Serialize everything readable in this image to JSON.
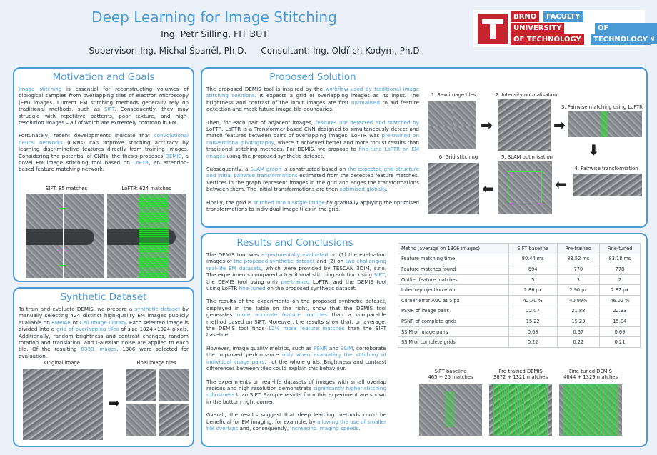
{
  "header": {
    "title": "Deep Learning for Image Stitching",
    "author": "Ing. Petr Šilling, FIT BUT",
    "supervisor": "Supervisor: Ing. Michal Španěl, Ph.D.",
    "consultant": "Consultant: Ing. Oldřich Kodym, Ph.D."
  },
  "logo": {
    "l1": "BRNO",
    "l1b": "FACULTY",
    "l2": "UNIVERSITY",
    "l2b": "OF INFORMATION",
    "l3": "OF TECHNOLOGY",
    "l3b": "TECHNOLOGY",
    "red": "#c7242d",
    "blue": "#4a9ad6"
  },
  "motivation": {
    "title": "Motivation and Goals",
    "p1": [
      {
        "t": "Image stitching",
        "h": true
      },
      {
        "t": " is essential for reconstructing volumes of biological samples from overlapping tiles of electron microscopy (EM) images. Current EM stitching methods generally rely on traditional methods, such as "
      },
      {
        "t": "SIFT",
        "h": true
      },
      {
        "t": ". Consequently, they may struggle with repetitive patterns, poor texture, and high-resolution images – all of which are extremely common in EM."
      }
    ],
    "p2": [
      {
        "t": "Fortunately, recent developments indicate that "
      },
      {
        "t": "convolutional neural networks",
        "h": true
      },
      {
        "t": " (CNNs) can improve stitching accuracy by learning discriminative features directly from training images. Considering the potential of CNNs, the thesis proposes "
      },
      {
        "t": "DEMIS",
        "h": true
      },
      {
        "t": ", a novel EM image stitching tool based on "
      },
      {
        "t": "LoFTR",
        "h": true
      },
      {
        "t": ", an attention-based feature matching network."
      }
    ],
    "sift_caption": "SIFT: 85 matches",
    "loftr_caption": "LoFTR: 624 matches"
  },
  "synthetic": {
    "title": "Synthetic Dataset",
    "p1": [
      {
        "t": "To train and evaluate DEMIS, we prepare a "
      },
      {
        "t": "synthetic dataset",
        "h": true
      },
      {
        "t": " by manually selecting 424 distinct high-quality EM images publicly available on "
      },
      {
        "t": "EMPIAR",
        "h": true
      },
      {
        "t": " or "
      },
      {
        "t": "Cell Image Library",
        "h": true
      },
      {
        "t": ". Each selected image is divided into a "
      },
      {
        "t": "grid of overlapping tiles",
        "h": true
      },
      {
        "t": " of size 1024×1024 pixels. Additionally, random brightness and contrast changes, random rotation and translation, and Gaussian noise are applied to each tile. Of the resulting "
      },
      {
        "t": "8339 images",
        "h": true
      },
      {
        "t": ", 1306 were selected for evaluation."
      }
    ],
    "orig_caption": "Original image",
    "final_caption": "Final image tiles"
  },
  "proposed": {
    "title": "Proposed Solution",
    "p1": [
      {
        "t": "The proposed DEMIS tool is inspired by the "
      },
      {
        "t": "workflow used by traditional image stitching solutions",
        "h": true
      },
      {
        "t": ". It expects a grid of overlapping images as its input. The brightness and contrast of the input images are first "
      },
      {
        "t": "normalised",
        "h": true
      },
      {
        "t": " to aid feature detection and mask future image tile boundaries."
      }
    ],
    "p2": [
      {
        "t": "Then, for each pair of adjacent images, "
      },
      {
        "t": "features are detected and matched by",
        "h": true
      },
      {
        "t": " LoFTR. LoFTR is a Transformer-based CNN designed to simultaneously detect and match features between pairs of overlapping images. LoFTR was "
      },
      {
        "t": "pre-trained on conventional photography",
        "h": true
      },
      {
        "t": ", where it achieved better and more robust results than traditional stitching methods. For DEMIS, we propose to "
      },
      {
        "t": "fine-tune LoFTR on EM images",
        "h": true
      },
      {
        "t": " using the proposed synthetic dataset."
      }
    ],
    "p3": [
      {
        "t": "Subsequently, a "
      },
      {
        "t": "SLAM graph",
        "h": true
      },
      {
        "t": " is constructed based on "
      },
      {
        "t": "the expected grid structure and initial pairwise transformations",
        "h": true
      },
      {
        "t": " estimated from the detected feature matches. Vertices in the graph represent images in the grid and edges the transformations between them. The initial transformations are then "
      },
      {
        "t": "optimised globally",
        "h": true
      },
      {
        "t": "."
      }
    ],
    "p4": [
      {
        "t": "Finally, the grid is "
      },
      {
        "t": "stitched into a single image",
        "h": true
      },
      {
        "t": " by gradually applying the optimised transformations to individual image tiles in the grid."
      }
    ],
    "steps": [
      "1. Raw image tiles",
      "2. Intensity normalisation",
      "3. Pairwise matching using LoFTR",
      "4. Pairwise transformation",
      "5. SLAM optimisation",
      "6. Grid stitching"
    ]
  },
  "results": {
    "title": "Results and Conclusions",
    "p1": [
      {
        "t": "The DEMIS tool was "
      },
      {
        "t": "experimentally evaluated",
        "h": true
      },
      {
        "t": " on (1) the evaluation images of "
      },
      {
        "t": "the proposed synthetic dataset",
        "h": true
      },
      {
        "t": " and (2) on "
      },
      {
        "t": "two challenging real-life EM datasets",
        "h": true
      },
      {
        "t": ", which were provided by TESCAN 3DIM, s.r.o. The experiments compared a traditional stitching solution using "
      },
      {
        "t": "SIFT",
        "h": true
      },
      {
        "t": ", the DEMIS tool using only "
      },
      {
        "t": "pre-trained",
        "h": true
      },
      {
        "t": " LoFTR, and the DEMIS tool using LoFTR "
      },
      {
        "t": "fine-tuned",
        "h": true
      },
      {
        "t": " on the proposed synthetic dataset."
      }
    ],
    "p2": [
      {
        "t": "The results of the experiments on the proposed synthetic dataset, displayed in the table on the right, show that the DEMIS tool generates "
      },
      {
        "t": "more accurate feature matches",
        "h": true
      },
      {
        "t": " than a comparable method based on SIFT. Moreover, the results show that, on average, the DEMIS tool finds "
      },
      {
        "t": "12% more feature matches",
        "h": true
      },
      {
        "t": " than the SIFT baseline."
      }
    ],
    "p3": [
      {
        "t": "However, image quality metrics, such as "
      },
      {
        "t": "PSNR",
        "h": true
      },
      {
        "t": " and "
      },
      {
        "t": "SSIM",
        "h": true
      },
      {
        "t": ", corroborate the improved performance "
      },
      {
        "t": "only when evaluating the stitching of individual image pairs",
        "h": true
      },
      {
        "t": ", not the whole grids. Brightness and contrast differences between tiles could explain this behaviour."
      }
    ],
    "p4": [
      {
        "t": "The experiments on real-life datasets of images with small overlap regions and high resolution demonstrate "
      },
      {
        "t": "significantly higher stitching robustness",
        "h": true
      },
      {
        "t": " than SIFT. Sample results from this experiment are shown in the bottom right corner."
      }
    ],
    "p5": [
      {
        "t": "Overall, the results suggest that deep learning methods could be beneficial for EM imaging, for example, by "
      },
      {
        "t": "allowing the use of smaller tile overlaps",
        "h": true
      },
      {
        "t": " and, consequently, "
      },
      {
        "t": "increasing imaging speeds",
        "h": true
      },
      {
        "t": "."
      }
    ],
    "table": {
      "header": [
        "Metric (average on 1306 images)",
        "SIFT baseline",
        "Pre-trained",
        "Fine-tuned"
      ],
      "rows": [
        [
          "Feature matching time",
          "80.44 ms",
          "83.52 ms",
          "83.18 ms"
        ],
        [
          "Feature matches found",
          "694",
          "770",
          "778"
        ],
        [
          "Outlier feature matches",
          "5",
          "3",
          "2"
        ],
        [
          "Inlier reprojection error",
          "2.86 px",
          "2.90 px",
          "2.82 px"
        ],
        [
          "Corner error AUC at 5 px",
          "42.70 %",
          "40.99%",
          "46.02 %"
        ],
        [
          "PSNR of image pairs",
          "22.07",
          "21.88",
          "22.33"
        ],
        [
          "PSNR of complete grids",
          "15.22",
          "15.23",
          "15.04"
        ],
        [
          "SSIM of image pairs",
          "0.68",
          "0.67",
          "0.69"
        ],
        [
          "SSIM of complete grids",
          "0.22",
          "0.22",
          "0.21"
        ]
      ]
    },
    "samples": [
      {
        "name": "SIFT baseline",
        "detail": "465 + 25 matches"
      },
      {
        "name": "Pre-trained DEMIS",
        "detail": "3872 + 1321 matches"
      },
      {
        "name": "Fine-tuned DEMIS",
        "detail": "4044 + 1329 matches"
      }
    ]
  }
}
